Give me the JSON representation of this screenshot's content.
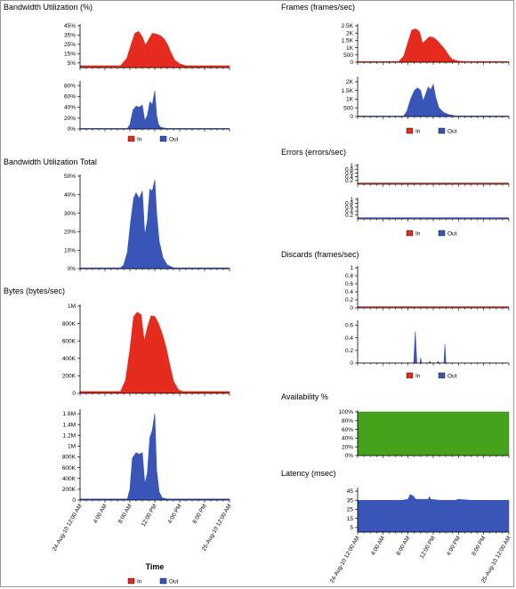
{
  "colors": {
    "in": "#e52a1e",
    "out": "#3a55b8",
    "availability": "#45a31b",
    "axis": "#000000",
    "flat_in": "#c0251b",
    "flat_out": "#3a55b8"
  },
  "legend": {
    "in_label": "In",
    "out_label": "Out"
  },
  "time_axis": {
    "title": "Time",
    "ticks": [
      "24-Aug-10 12:00 AM",
      "4:00 AM",
      "8:00 AM",
      "12:00 PM",
      "4:00 PM",
      "8:00 PM",
      "25-Aug-10 12:00 AM"
    ]
  },
  "chart_data": [
    {
      "id": "bandwidth_utilization",
      "type": "area",
      "title": "Bandwidth Utilization (%)",
      "hours": [
        0,
        4,
        8,
        12,
        16,
        20,
        24
      ],
      "subplots": [
        {
          "series": "In",
          "yticks": [
            "5%",
            "15%",
            "25%",
            "35%",
            "45%"
          ],
          "ylim": [
            0,
            45
          ],
          "points": [
            [
              0,
              2
            ],
            [
              6.5,
              2
            ],
            [
              7.5,
              10
            ],
            [
              8.2,
              25
            ],
            [
              8.8,
              37
            ],
            [
              9.4,
              39
            ],
            [
              10.0,
              33
            ],
            [
              10.5,
              24
            ],
            [
              11.0,
              30
            ],
            [
              11.6,
              37
            ],
            [
              12.3,
              36
            ],
            [
              13.0,
              34
            ],
            [
              13.6,
              30
            ],
            [
              14.1,
              24
            ],
            [
              14.6,
              16
            ],
            [
              15.2,
              8
            ],
            [
              16.0,
              4
            ],
            [
              17,
              2
            ],
            [
              19,
              2
            ],
            [
              24,
              2
            ]
          ]
        },
        {
          "series": "Out",
          "yticks": [
            "0%",
            "20%",
            "40%",
            "60%",
            "80%"
          ],
          "ylim": [
            0,
            85
          ],
          "points": [
            [
              0,
              1
            ],
            [
              7.6,
              1
            ],
            [
              8.0,
              8
            ],
            [
              8.5,
              35
            ],
            [
              9.0,
              42
            ],
            [
              9.5,
              40
            ],
            [
              10.0,
              44
            ],
            [
              10.4,
              15
            ],
            [
              10.8,
              25
            ],
            [
              11.2,
              50
            ],
            [
              11.6,
              45
            ],
            [
              12.0,
              70
            ],
            [
              12.3,
              25
            ],
            [
              12.6,
              8
            ],
            [
              13.0,
              3
            ],
            [
              14,
              1
            ],
            [
              24,
              1
            ]
          ]
        }
      ]
    },
    {
      "id": "bandwidth_utilization_total",
      "type": "area",
      "title": "Bandwidth Utilization Total",
      "hours": [
        0,
        4,
        8,
        12,
        16,
        20,
        24
      ],
      "subplots": [
        {
          "series": "Out",
          "yticks": [
            "0%",
            "10%",
            "20%",
            "30%",
            "40%",
            "50%"
          ],
          "ylim": [
            0,
            50
          ],
          "points": [
            [
              0,
              0.5
            ],
            [
              6.5,
              0.5
            ],
            [
              7.0,
              2
            ],
            [
              7.6,
              9
            ],
            [
              8.1,
              25
            ],
            [
              8.6,
              38
            ],
            [
              9.0,
              41
            ],
            [
              9.5,
              38
            ],
            [
              10.0,
              42
            ],
            [
              10.4,
              18
            ],
            [
              10.8,
              26
            ],
            [
              11.2,
              43
            ],
            [
              11.6,
              42
            ],
            [
              12.0,
              48
            ],
            [
              12.3,
              30
            ],
            [
              12.7,
              15
            ],
            [
              13.3,
              6
            ],
            [
              14.0,
              2
            ],
            [
              15,
              0.5
            ],
            [
              24,
              0.5
            ]
          ]
        }
      ]
    },
    {
      "id": "bytes",
      "type": "area",
      "title": "Bytes (bytes/sec)",
      "hours": [
        0,
        4,
        8,
        12,
        16,
        20,
        24
      ],
      "subplots": [
        {
          "series": "In",
          "yticks": [
            "0",
            "200K",
            "400K",
            "600K",
            "800K",
            "1M"
          ],
          "ylim": [
            0,
            1000000
          ],
          "points": [
            [
              0,
              20000
            ],
            [
              6.5,
              20000
            ],
            [
              7.3,
              150000
            ],
            [
              8.0,
              500000
            ],
            [
              8.6,
              880000
            ],
            [
              9.2,
              930000
            ],
            [
              9.8,
              900000
            ],
            [
              10.3,
              600000
            ],
            [
              10.8,
              750000
            ],
            [
              11.4,
              890000
            ],
            [
              12.0,
              880000
            ],
            [
              12.6,
              800000
            ],
            [
              13.2,
              680000
            ],
            [
              13.8,
              530000
            ],
            [
              14.4,
              330000
            ],
            [
              15.0,
              140000
            ],
            [
              15.8,
              40000
            ],
            [
              16.5,
              20000
            ],
            [
              24,
              20000
            ]
          ]
        },
        {
          "series": "Out",
          "yticks": [
            "0",
            "200K",
            "400K",
            "600K",
            "800K",
            "1M",
            "1.2M",
            "1.4M",
            "1.6M"
          ],
          "ylim": [
            0,
            1650000
          ],
          "points": [
            [
              0,
              20000
            ],
            [
              7.6,
              20000
            ],
            [
              8.0,
              200000
            ],
            [
              8.4,
              780000
            ],
            [
              9.0,
              880000
            ],
            [
              9.5,
              850000
            ],
            [
              10.0,
              880000
            ],
            [
              10.4,
              300000
            ],
            [
              10.8,
              500000
            ],
            [
              11.2,
              1150000
            ],
            [
              11.6,
              1300000
            ],
            [
              12.0,
              1600000
            ],
            [
              12.3,
              550000
            ],
            [
              12.7,
              150000
            ],
            [
              13.2,
              40000
            ],
            [
              14,
              20000
            ],
            [
              24,
              20000
            ]
          ]
        }
      ]
    },
    {
      "id": "frames",
      "type": "area",
      "title": "Frames (frames/sec)",
      "hours": [
        0,
        4,
        8,
        12,
        16,
        20,
        24
      ],
      "subplots": [
        {
          "series": "In",
          "yticks": [
            "0",
            "500",
            "1K",
            "1.5K",
            "2K",
            "2.5K"
          ],
          "ylim": [
            0,
            2500
          ],
          "points": [
            [
              0,
              50
            ],
            [
              6.5,
              50
            ],
            [
              7.3,
              400
            ],
            [
              8.0,
              1400
            ],
            [
              8.6,
              2200
            ],
            [
              9.2,
              2300
            ],
            [
              9.8,
              2100
            ],
            [
              10.3,
              1300
            ],
            [
              10.8,
              1500
            ],
            [
              11.4,
              1750
            ],
            [
              12.0,
              1700
            ],
            [
              12.6,
              1500
            ],
            [
              13.2,
              1200
            ],
            [
              13.8,
              900
            ],
            [
              14.4,
              500
            ],
            [
              15.0,
              200
            ],
            [
              16,
              80
            ],
            [
              17,
              50
            ],
            [
              24,
              50
            ]
          ]
        },
        {
          "series": "Out",
          "yticks": [
            "0",
            "500",
            "1K",
            "1.5K",
            "2K"
          ],
          "ylim": [
            0,
            2200
          ],
          "points": [
            [
              0,
              30
            ],
            [
              7.3,
              30
            ],
            [
              7.8,
              300
            ],
            [
              8.4,
              1000
            ],
            [
              9.0,
              1500
            ],
            [
              9.5,
              1650
            ],
            [
              10.0,
              1500
            ],
            [
              10.4,
              900
            ],
            [
              10.8,
              1300
            ],
            [
              11.2,
              1700
            ],
            [
              11.6,
              1550
            ],
            [
              12.0,
              1850
            ],
            [
              12.4,
              1100
            ],
            [
              12.9,
              500
            ],
            [
              13.6,
              250
            ],
            [
              14.4,
              120
            ],
            [
              15.5,
              40
            ],
            [
              24,
              30
            ]
          ]
        }
      ]
    },
    {
      "id": "errors",
      "type": "line",
      "title": "Errors (errors/sec)",
      "hours": [
        0,
        4,
        8,
        12,
        16,
        20,
        24
      ],
      "subplots": [
        {
          "series": "In",
          "yticks": [
            "0.2",
            "0.4",
            "0.6",
            "0.8",
            "1"
          ],
          "ylim": [
            0,
            1
          ],
          "points": [
            [
              0,
              0
            ],
            [
              24,
              0
            ]
          ]
        },
        {
          "series": "Out",
          "yticks": [
            "0.2",
            "0.4",
            "0.6",
            "0.8",
            "1"
          ],
          "ylim": [
            0,
            1
          ],
          "points": [
            [
              0,
              0
            ],
            [
              24,
              0
            ]
          ]
        }
      ]
    },
    {
      "id": "discards",
      "type": "area",
      "title": "Discards (frames/sec)",
      "hours": [
        0,
        4,
        8,
        12,
        16,
        20,
        24
      ],
      "subplots": [
        {
          "series": "In",
          "yticks": [
            "0",
            "0.2",
            "0.4",
            "0.6",
            "0.8",
            "1"
          ],
          "ylim": [
            0,
            1
          ],
          "points": [
            [
              0,
              0
            ],
            [
              24,
              0
            ]
          ]
        },
        {
          "series": "Out",
          "yticks": [
            "0",
            "0.2",
            "0.4",
            "0.6"
          ],
          "ylim": [
            0,
            0.65
          ],
          "points": [
            [
              0,
              0
            ],
            [
              8.9,
              0
            ],
            [
              9.15,
              0.5
            ],
            [
              9.4,
              0
            ],
            [
              9.9,
              0
            ],
            [
              10.0,
              0.08
            ],
            [
              10.15,
              0
            ],
            [
              11.3,
              0
            ],
            [
              11.45,
              0.03
            ],
            [
              11.6,
              0
            ],
            [
              12.6,
              0
            ],
            [
              12.75,
              0.03
            ],
            [
              12.9,
              0
            ],
            [
              13.7,
              0
            ],
            [
              13.85,
              0.3
            ],
            [
              14.0,
              0
            ],
            [
              24,
              0
            ]
          ]
        }
      ]
    },
    {
      "id": "availability",
      "type": "area",
      "title": "Availability %",
      "hours": [
        0,
        4,
        8,
        12,
        16,
        20,
        24
      ],
      "subplots": [
        {
          "series": "Availability",
          "yticks": [
            "0%",
            "20%",
            "40%",
            "60%",
            "80%",
            "100%"
          ],
          "ylim": [
            0,
            100
          ],
          "points": [
            [
              0,
              100
            ],
            [
              24,
              100
            ]
          ]
        }
      ]
    },
    {
      "id": "latency",
      "type": "area",
      "title": "Latency (msec)",
      "hours": [
        0,
        4,
        8,
        12,
        16,
        20,
        24
      ],
      "subplots": [
        {
          "series": "Latency",
          "yticks": [
            "5",
            "15",
            "25",
            "35",
            "45"
          ],
          "ylim": [
            0,
            47
          ],
          "points": [
            [
              0,
              35
            ],
            [
              7,
              35
            ],
            [
              8.0,
              36
            ],
            [
              8.3,
              41
            ],
            [
              8.8,
              40
            ],
            [
              9.2,
              36
            ],
            [
              10,
              36
            ],
            [
              11.2,
              36
            ],
            [
              11.4,
              39
            ],
            [
              11.6,
              36
            ],
            [
              13,
              35
            ],
            [
              15.5,
              35
            ],
            [
              16,
              36
            ],
            [
              18,
              35
            ],
            [
              20,
              35
            ],
            [
              24,
              35
            ]
          ]
        }
      ]
    }
  ]
}
